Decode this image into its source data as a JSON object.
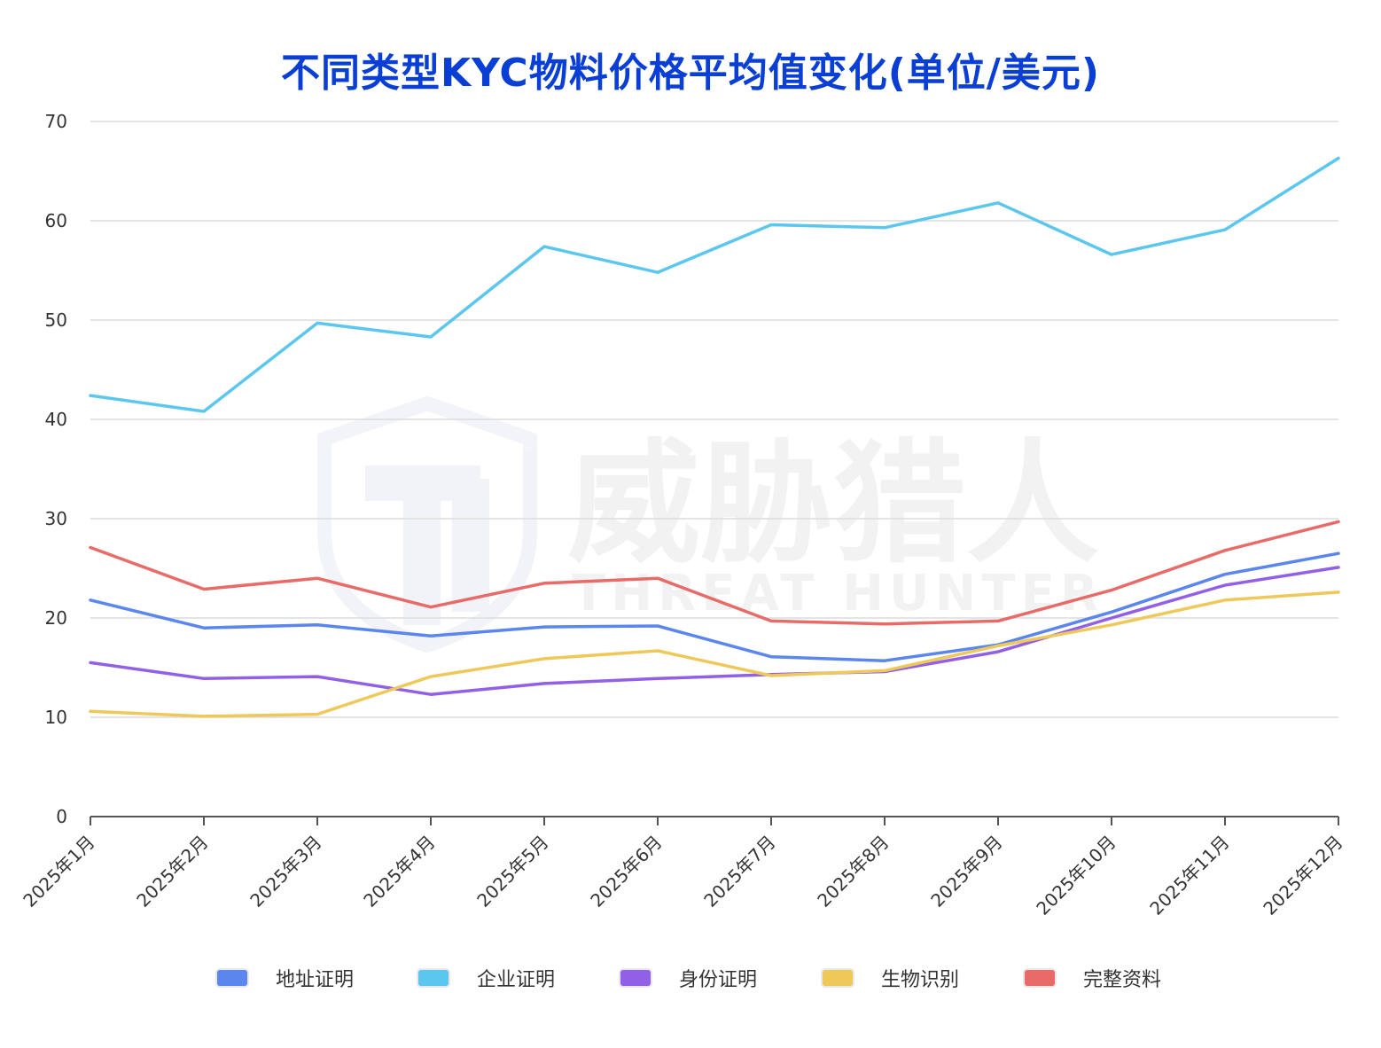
{
  "chart_data": {
    "type": "line",
    "title": "不同类型KYC物料价格平均值变化(单位/美元)",
    "xlabel": "",
    "ylabel": "",
    "ylim": [
      0,
      70
    ],
    "yticks": [
      0,
      10,
      20,
      30,
      40,
      50,
      60,
      70
    ],
    "grid": true,
    "legend_position": "bottom",
    "categories": [
      "2025年1月",
      "2025年2月",
      "2025年3月",
      "2025年4月",
      "2025年5月",
      "2025年6月",
      "2025年7月",
      "2025年8月",
      "2025年9月",
      "2025年10月",
      "2025年11月",
      "2025年12月"
    ],
    "series": [
      {
        "name": "地址证明",
        "color": "#5b86ee",
        "values": [
          21.8,
          19.0,
          19.3,
          18.2,
          19.1,
          19.2,
          16.1,
          15.7,
          17.3,
          20.6,
          24.4,
          26.5
        ]
      },
      {
        "name": "企业证明",
        "color": "#5bc7ee",
        "values": [
          42.4,
          40.8,
          49.7,
          48.3,
          57.4,
          54.8,
          59.6,
          59.3,
          61.8,
          56.6,
          59.1,
          66.3
        ]
      },
      {
        "name": "身份证明",
        "color": "#9260e6",
        "values": [
          15.5,
          13.9,
          14.1,
          12.3,
          13.4,
          13.9,
          14.3,
          14.6,
          16.6,
          20.0,
          23.3,
          25.1
        ]
      },
      {
        "name": "生物识别",
        "color": "#eec95a",
        "values": [
          10.6,
          10.1,
          10.3,
          14.1,
          15.9,
          16.7,
          14.2,
          14.7,
          17.2,
          19.3,
          21.8,
          22.6
        ]
      },
      {
        "name": "完整资料",
        "color": "#e86b68",
        "values": [
          27.1,
          22.9,
          24.0,
          21.1,
          23.5,
          24.0,
          19.7,
          19.4,
          19.7,
          22.8,
          26.8,
          29.7
        ]
      }
    ]
  },
  "watermark": {
    "title": "威胁猎人",
    "subtitle": "THREAT HUNTER",
    "icon": "shield-icon"
  }
}
